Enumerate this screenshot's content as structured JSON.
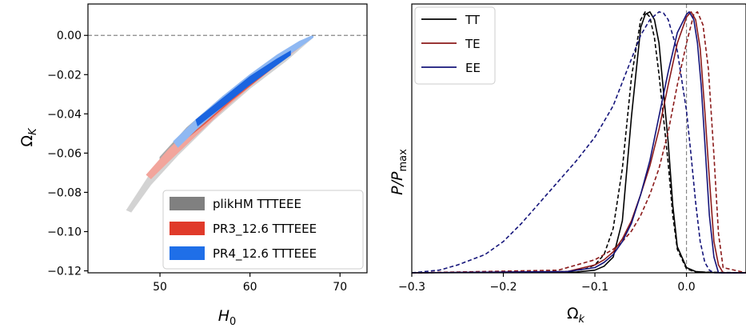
{
  "chart_data": [
    {
      "type": "contour",
      "xlabel": "H",
      "xlabel_sub": "0",
      "ylabel": "Ω",
      "ylabel_sub": "K",
      "xlim": [
        42,
        73
      ],
      "ylim": [
        -0.121,
        0.016
      ],
      "xticks": [
        50,
        60,
        70
      ],
      "yticks": [
        0.0,
        -0.02,
        -0.04,
        -0.06,
        -0.08,
        -0.1,
        -0.12
      ],
      "ytick_labels": [
        "0.00",
        "−0.02",
        "−0.04",
        "−0.06",
        "−0.08",
        "−0.10",
        "−0.12"
      ],
      "reference_line": {
        "y": 0,
        "style": "dashed",
        "color": "#888888"
      },
      "legend": {
        "position": "lower-right"
      },
      "series": [
        {
          "name": "plikHM TTTEEE",
          "legend_color": "#808080",
          "outer_color": "#d3d3d3",
          "inner_color": "#a9a9a9",
          "outer": {
            "upper": [
              [
                46.3,
                -0.089
              ],
              [
                49,
                -0.07
              ],
              [
                52,
                -0.053
              ],
              [
                56,
                -0.035
              ],
              [
                60,
                -0.021
              ],
              [
                64,
                -0.009
              ],
              [
                67,
                -0.001
              ]
            ],
            "lower": [
              [
                67,
                -0.001
              ],
              [
                64,
                -0.013
              ],
              [
                60,
                -0.027
              ],
              [
                56,
                -0.043
              ],
              [
                52,
                -0.061
              ],
              [
                49,
                -0.076
              ],
              [
                46.8,
                -0.09
              ]
            ]
          },
          "inner": {
            "upper": [
              [
                50,
                -0.062
              ],
              [
                53,
                -0.047
              ],
              [
                57,
                -0.031
              ],
              [
                61,
                -0.018
              ],
              [
                64.5,
                -0.007
              ]
            ],
            "lower": [
              [
                64.5,
                -0.009
              ],
              [
                61,
                -0.022
              ],
              [
                57,
                -0.037
              ],
              [
                53,
                -0.053
              ],
              [
                50,
                -0.066
              ]
            ]
          }
        },
        {
          "name": "PR3_12.6 TTTEEE",
          "legend_color": "#e03a2a",
          "outer_color": "#f2a59c",
          "inner_color": "#e35b48",
          "outer": {
            "upper": [
              [
                48.5,
                -0.071
              ],
              [
                51,
                -0.058
              ],
              [
                54,
                -0.045
              ],
              [
                57,
                -0.033
              ],
              [
                60,
                -0.022
              ],
              [
                63,
                -0.012
              ],
              [
                65.5,
                -0.004
              ]
            ],
            "lower": [
              [
                65.5,
                -0.006
              ],
              [
                63,
                -0.015
              ],
              [
                60,
                -0.026
              ],
              [
                57,
                -0.038
              ],
              [
                54,
                -0.051
              ],
              [
                51,
                -0.064
              ],
              [
                49,
                -0.073
              ]
            ]
          },
          "inner": {
            "upper": [
              [
                52,
                -0.052
              ],
              [
                55,
                -0.04
              ],
              [
                58,
                -0.029
              ],
              [
                61,
                -0.019
              ],
              [
                63.5,
                -0.011
              ]
            ],
            "lower": [
              [
                63.5,
                -0.013
              ],
              [
                61,
                -0.022
              ],
              [
                58,
                -0.033
              ],
              [
                55,
                -0.045
              ],
              [
                52,
                -0.056
              ]
            ]
          }
        },
        {
          "name": "PR4_12.6 TTTEEE",
          "legend_color": "#1f6fe8",
          "outer_color": "#8fb8f2",
          "inner_color": "#1a64e0",
          "outer": {
            "upper": [
              [
                51.5,
                -0.054
              ],
              [
                54,
                -0.043
              ],
              [
                57,
                -0.031
              ],
              [
                60,
                -0.02
              ],
              [
                63,
                -0.01
              ],
              [
                65.5,
                -0.003
              ],
              [
                67,
                0.0
              ]
            ],
            "lower": [
              [
                67,
                -0.001
              ],
              [
                65.5,
                -0.006
              ],
              [
                63,
                -0.014
              ],
              [
                60,
                -0.024
              ],
              [
                57,
                -0.036
              ],
              [
                54,
                -0.048
              ],
              [
                52,
                -0.057
              ]
            ]
          },
          "inner": {
            "upper": [
              [
                54,
                -0.043
              ],
              [
                57,
                -0.032
              ],
              [
                60,
                -0.021
              ],
              [
                63,
                -0.012
              ],
              [
                64.5,
                -0.008
              ]
            ],
            "lower": [
              [
                64.5,
                -0.01
              ],
              [
                63,
                -0.015
              ],
              [
                60,
                -0.025
              ],
              [
                57,
                -0.036
              ],
              [
                54.2,
                -0.046
              ]
            ]
          }
        }
      ]
    },
    {
      "type": "line",
      "xlabel": "Ω",
      "xlabel_sub": "k",
      "ylabel": "P/P",
      "ylabel_sub": "max",
      "xlim": [
        -0.3,
        0.065
      ],
      "ylim": [
        0,
        1.03
      ],
      "xticks": [
        -0.3,
        -0.2,
        -0.1,
        0.0
      ],
      "xtick_labels": [
        "−0.3",
        "−0.2",
        "−0.1",
        "0.0"
      ],
      "reference_line": {
        "x": 0,
        "style": "dashed",
        "color": "#888888"
      },
      "legend": {
        "position": "top-left"
      },
      "series": [
        {
          "name": "TT",
          "color": "#000000",
          "style": "solid",
          "x": [
            -0.3,
            -0.12,
            -0.1,
            -0.09,
            -0.08,
            -0.07,
            -0.06,
            -0.05,
            -0.045,
            -0.04,
            -0.035,
            -0.03,
            -0.02,
            -0.015,
            -0.01,
            0.0,
            0.01,
            0.02,
            0.04,
            0.065
          ],
          "y": [
            0,
            0.003,
            0.01,
            0.025,
            0.06,
            0.2,
            0.6,
            0.94,
            0.99,
            1.0,
            0.97,
            0.88,
            0.5,
            0.26,
            0.1,
            0.02,
            0.005,
            0.002,
            0.0,
            0.0
          ]
        },
        {
          "name": "TT",
          "color": "#000000",
          "style": "dashed",
          "legend": false,
          "x": [
            -0.3,
            -0.13,
            -0.11,
            -0.1,
            -0.09,
            -0.08,
            -0.07,
            -0.06,
            -0.05,
            -0.045,
            -0.04,
            -0.035,
            -0.03,
            -0.02,
            -0.015,
            -0.01,
            0.0,
            0.01,
            0.065
          ],
          "y": [
            0,
            0.005,
            0.015,
            0.03,
            0.07,
            0.17,
            0.4,
            0.75,
            0.97,
            1.0,
            0.98,
            0.9,
            0.76,
            0.42,
            0.22,
            0.09,
            0.015,
            0.003,
            0.0
          ]
        },
        {
          "name": "TE",
          "color": "#8b1a1a",
          "style": "solid",
          "x": [
            -0.3,
            -0.13,
            -0.1,
            -0.09,
            -0.08,
            -0.07,
            -0.06,
            -0.05,
            -0.04,
            -0.03,
            -0.02,
            -0.01,
            0.0,
            0.005,
            0.01,
            0.015,
            0.02,
            0.025,
            0.03,
            0.035,
            0.04,
            0.065
          ],
          "y": [
            0,
            0.005,
            0.03,
            0.05,
            0.08,
            0.13,
            0.2,
            0.3,
            0.41,
            0.55,
            0.72,
            0.88,
            0.98,
            1.0,
            0.97,
            0.86,
            0.62,
            0.36,
            0.12,
            0.03,
            0.0,
            0.0
          ]
        },
        {
          "name": "TE",
          "color": "#8b1a1a",
          "style": "dashed",
          "legend": false,
          "x": [
            -0.3,
            -0.14,
            -0.12,
            -0.1,
            -0.09,
            -0.08,
            -0.07,
            -0.06,
            -0.05,
            -0.04,
            -0.03,
            -0.02,
            -0.01,
            0.0,
            0.008,
            0.012,
            0.018,
            0.024,
            0.03,
            0.035,
            0.04,
            0.065
          ],
          "y": [
            0,
            0.01,
            0.03,
            0.05,
            0.07,
            0.09,
            0.12,
            0.16,
            0.22,
            0.3,
            0.4,
            0.54,
            0.72,
            0.88,
            0.99,
            1.0,
            0.95,
            0.78,
            0.45,
            0.15,
            0.02,
            0.0
          ]
        },
        {
          "name": "EE",
          "color": "#14147a",
          "style": "solid",
          "x": [
            -0.3,
            -0.13,
            -0.1,
            -0.09,
            -0.08,
            -0.07,
            -0.06,
            -0.05,
            -0.04,
            -0.03,
            -0.02,
            -0.01,
            0.0,
            0.003,
            0.008,
            0.012,
            0.016,
            0.02,
            0.025,
            0.03,
            0.035,
            0.065
          ],
          "y": [
            0,
            0.005,
            0.02,
            0.04,
            0.07,
            0.12,
            0.19,
            0.3,
            0.43,
            0.6,
            0.77,
            0.92,
            0.99,
            1.0,
            0.97,
            0.88,
            0.72,
            0.5,
            0.22,
            0.06,
            0.0,
            0.0
          ]
        },
        {
          "name": "EE",
          "color": "#14147a",
          "style": "dashed",
          "legend": false,
          "x": [
            -0.3,
            -0.27,
            -0.25,
            -0.22,
            -0.2,
            -0.18,
            -0.16,
            -0.14,
            -0.12,
            -0.1,
            -0.08,
            -0.06,
            -0.05,
            -0.04,
            -0.03,
            -0.025,
            -0.02,
            -0.01,
            0.0,
            0.005,
            0.01,
            0.015,
            0.02,
            0.025,
            0.03,
            0.065
          ],
          "y": [
            0,
            0.01,
            0.03,
            0.07,
            0.12,
            0.19,
            0.27,
            0.35,
            0.43,
            0.52,
            0.64,
            0.82,
            0.91,
            0.97,
            1.0,
            0.995,
            0.97,
            0.85,
            0.62,
            0.45,
            0.27,
            0.12,
            0.04,
            0.01,
            0.0,
            0.0
          ]
        }
      ]
    }
  ]
}
